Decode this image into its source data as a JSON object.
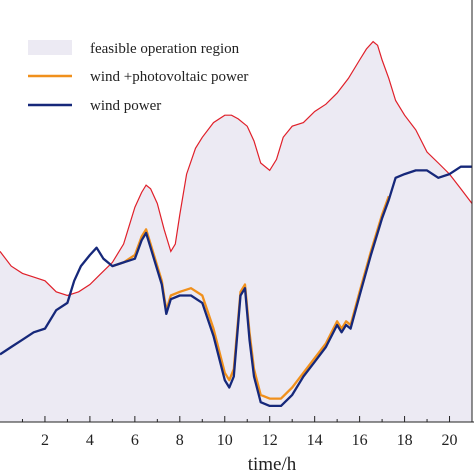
{
  "chart_data": {
    "type": "area",
    "xlabel": "time/h",
    "xlim": [
      0,
      21
    ],
    "ylim": [
      0,
      100
    ],
    "x_ticks": [
      2,
      4,
      6,
      8,
      10,
      12,
      14,
      16,
      18,
      20
    ],
    "x_tick_labels": [
      "2",
      "4",
      "6",
      "8",
      "10",
      "12",
      "14",
      "16",
      "18",
      "20"
    ],
    "grid": false,
    "legend_position": "top-left",
    "colors": {
      "region_fill": "#eceaf3",
      "upper_bound": "#e0202a",
      "wind_pv": "#f0901c",
      "wind": "#16287a",
      "axis": "#222222"
    },
    "series": [
      {
        "name": "feasible operation region",
        "kind": "region",
        "x": [
          0,
          0.5,
          1,
          1.5,
          2,
          2.5,
          3,
          3.5,
          4,
          4.5,
          5,
          5.5,
          6,
          6.3,
          6.5,
          6.7,
          7,
          7.3,
          7.6,
          7.8,
          8,
          8.3,
          8.7,
          9,
          9.5,
          10,
          10.3,
          10.6,
          11,
          11.3,
          11.6,
          12,
          12.3,
          12.6,
          13,
          13.5,
          14,
          14.5,
          15,
          15.5,
          16,
          16.3,
          16.6,
          16.8,
          17,
          17.3,
          17.6,
          18,
          18.5,
          19,
          19.5,
          20,
          20.5,
          21
        ],
        "upper": [
          48,
          44,
          42,
          41,
          40,
          37,
          36,
          37,
          39,
          42,
          45,
          50,
          60,
          64,
          66,
          65,
          61,
          54,
          48,
          50,
          58,
          69,
          76,
          79,
          83,
          85,
          85,
          84,
          82,
          78,
          72,
          70,
          73,
          79,
          82,
          83,
          86,
          88,
          91,
          95,
          100,
          103,
          105,
          104,
          100,
          95,
          89,
          85,
          81,
          75,
          72,
          69,
          65,
          61
        ]
      },
      {
        "name": "wind +photovoltaic power",
        "x": [
          5,
          5.5,
          6,
          6.3,
          6.5,
          6.7,
          7,
          7.2,
          7.4,
          7.6,
          8,
          8.5,
          9,
          9.5,
          10,
          10.2,
          10.4,
          10.7,
          10.9,
          11.1,
          11.3,
          11.6,
          12,
          12.5,
          13,
          13.5,
          14,
          14.5,
          15,
          15.2,
          15.4,
          15.6,
          16,
          16.5,
          17,
          17.3
        ],
        "values": [
          44,
          45,
          47,
          52,
          54,
          50,
          44,
          40,
          32,
          36,
          37,
          38,
          36,
          27,
          15,
          13,
          16,
          37,
          39,
          26,
          16,
          9,
          8,
          8,
          11,
          15,
          19,
          23,
          29,
          27,
          29,
          28,
          37,
          48,
          58,
          63
        ]
      },
      {
        "name": "wind power",
        "x": [
          0,
          0.5,
          1,
          1.5,
          2,
          2.5,
          3,
          3.3,
          3.6,
          4,
          4.3,
          4.6,
          5,
          5.5,
          6,
          6.3,
          6.5,
          6.7,
          7,
          7.2,
          7.4,
          7.6,
          8,
          8.5,
          9,
          9.5,
          10,
          10.2,
          10.4,
          10.7,
          10.9,
          11.1,
          11.3,
          11.6,
          12,
          12.5,
          13,
          13.5,
          14,
          14.5,
          15,
          15.2,
          15.4,
          15.6,
          16,
          16.5,
          17,
          17.3,
          17.6,
          18,
          18.5,
          19,
          19.5,
          20,
          20.5,
          21
        ],
        "values": [
          20,
          22,
          24,
          26,
          27,
          32,
          34,
          40,
          44,
          47,
          49,
          46,
          44,
          45,
          46,
          51,
          53,
          49,
          43,
          39,
          31,
          35,
          36,
          36,
          34,
          25,
          13,
          11,
          14,
          36,
          38,
          24,
          14,
          7,
          6,
          6,
          9,
          14,
          18,
          22,
          28,
          26,
          28,
          27,
          36,
          47,
          57,
          62,
          68,
          69,
          70,
          70,
          68,
          69,
          71,
          71
        ]
      }
    ]
  }
}
